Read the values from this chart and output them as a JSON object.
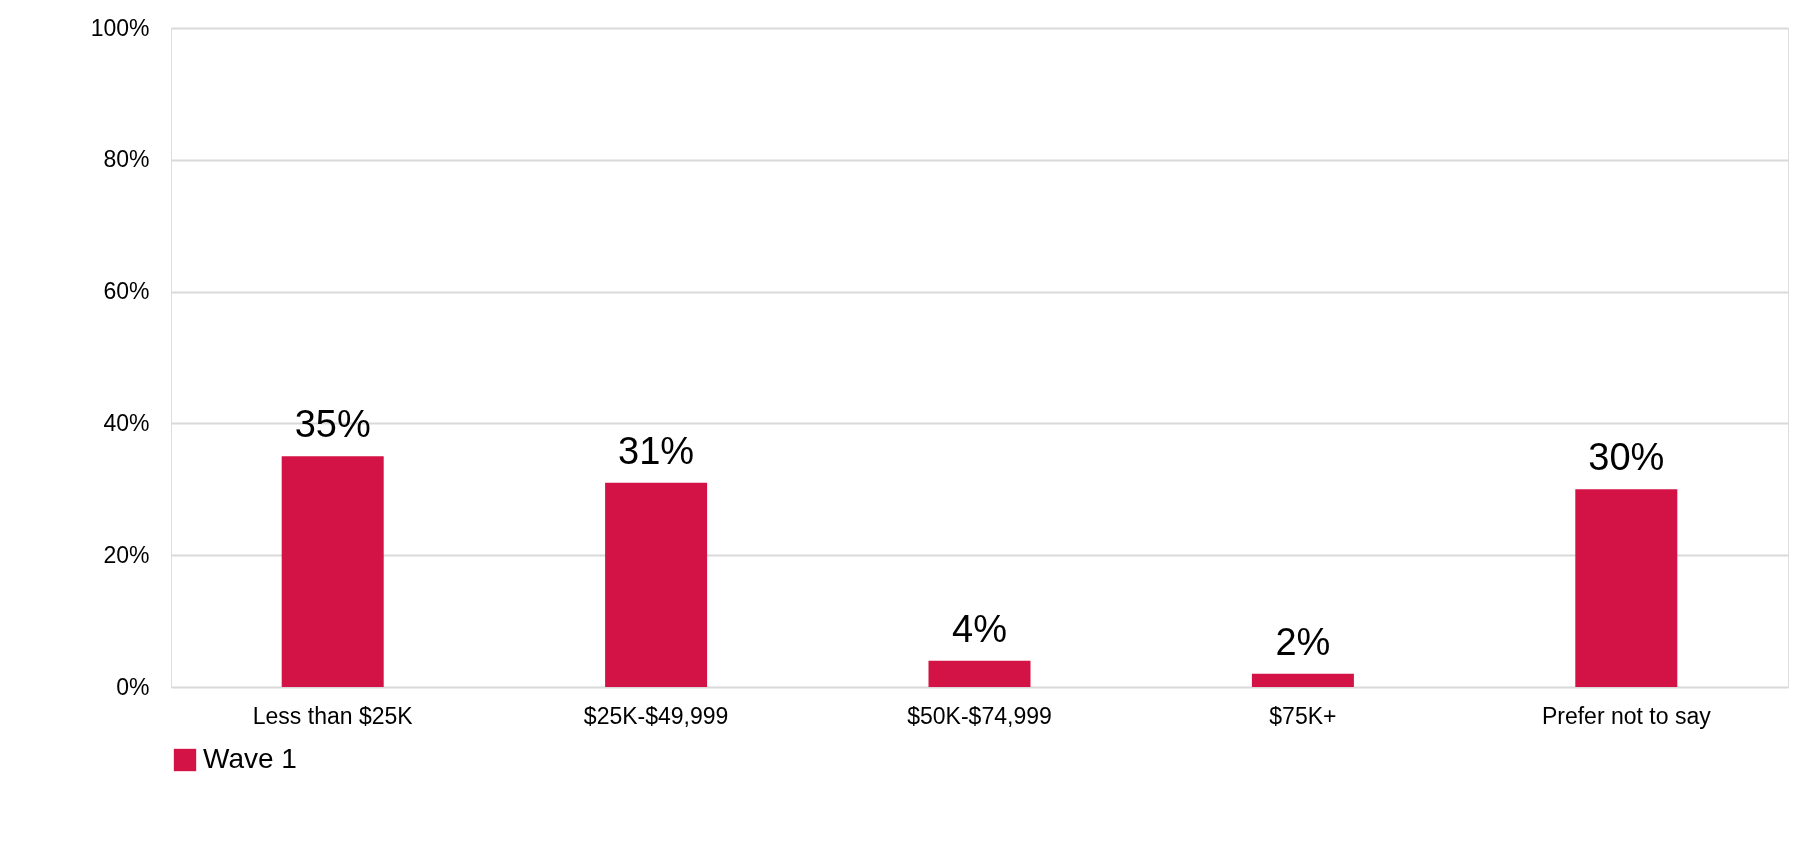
{
  "chart_data": {
    "type": "bar",
    "categories": [
      "Less than $25K",
      "$25K-$49,999",
      "$50K-$74,999",
      "$75K+",
      "Prefer not to say"
    ],
    "series": [
      {
        "name": "Wave 1",
        "color": "#d31245",
        "values": [
          35,
          31,
          4,
          2,
          30
        ],
        "value_labels": [
          "35%",
          "31%",
          "4%",
          "2%",
          "30%"
        ]
      }
    ],
    "ylim": [
      0,
      100
    ],
    "yticks": [
      {
        "value": 0,
        "label": "0%"
      },
      {
        "value": 20,
        "label": "20%"
      },
      {
        "value": 40,
        "label": "40%"
      },
      {
        "value": 60,
        "label": "60%"
      },
      {
        "value": 80,
        "label": "80%"
      },
      {
        "value": 100,
        "label": "100%"
      }
    ],
    "grid": "y",
    "legend": "bottom"
  }
}
